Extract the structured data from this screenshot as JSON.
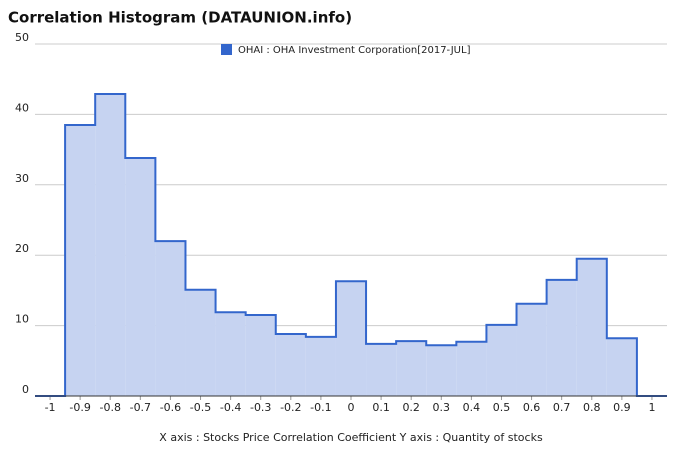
{
  "chart_data": {
    "type": "histogram",
    "title": "Correlation Histogram (DATAUNION.info)",
    "xlabel": "X axis : Stocks Price Correlation Coefficient  Y axis : Quantity of stocks",
    "series": [
      {
        "name": "OHAI : OHA Investment Corporation[2017-JUL]",
        "color": "#3366cc",
        "fill": "#c6d3f1",
        "bins": [
          -1.05,
          -0.95,
          -0.85,
          -0.75,
          -0.65,
          -0.55,
          -0.45,
          -0.35,
          -0.25,
          -0.15,
          -0.05,
          0.05,
          0.15,
          0.25,
          0.35,
          0.45,
          0.55,
          0.65,
          0.75,
          0.85,
          0.95,
          1.05
        ],
        "values": [
          0,
          38.5,
          42.9,
          33.8,
          22.0,
          15.1,
          11.9,
          11.5,
          8.8,
          8.4,
          16.3,
          7.4,
          7.8,
          7.2,
          7.7,
          10.1,
          13.1,
          16.5,
          19.5,
          8.2,
          0
        ]
      }
    ],
    "xlim": [
      -1.05,
      1.05
    ],
    "xticks": [
      -1,
      -0.9,
      -0.8,
      -0.7,
      -0.6,
      -0.5,
      -0.4,
      -0.3,
      -0.2,
      -0.1,
      0,
      0.1,
      0.2,
      0.3,
      0.4,
      0.5,
      0.6,
      0.7,
      0.8,
      0.9,
      1
    ],
    "ylim": [
      0,
      50
    ],
    "yticks": [
      0,
      10,
      20,
      30,
      40,
      50
    ],
    "grid": true,
    "legend": "top"
  }
}
